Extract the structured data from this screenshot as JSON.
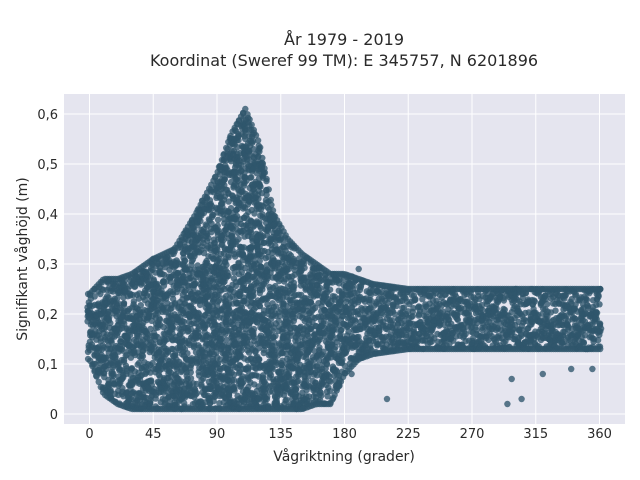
{
  "chart_data": {
    "type": "scatter",
    "title_line1": "År 1979 - 2019",
    "title_line2": "Koordinat (Sweref 99 TM): E 345757, N 6201896",
    "xlabel": "Vågriktning (grader)",
    "ylabel": "Signifikant våghöjd (m)",
    "xlim": [
      -18,
      378
    ],
    "ylim": [
      -0.02,
      0.64
    ],
    "xticks": [
      0,
      45,
      90,
      135,
      180,
      225,
      270,
      315,
      360
    ],
    "xtick_labels": [
      "0",
      "45",
      "90",
      "135",
      "180",
      "225",
      "270",
      "315",
      "360"
    ],
    "yticks": [
      0,
      0.1,
      0.2,
      0.3,
      0.4,
      0.5,
      0.6
    ],
    "ytick_labels": [
      "0",
      "0,1",
      "0,2",
      "0,3",
      "0,4",
      "0,5",
      "0,6"
    ],
    "grid": true,
    "legend": "none",
    "colors": {
      "background": "#e5e5ef",
      "points": "#30566b",
      "grid": "#ffffff"
    },
    "point_envelope": {
      "description_x": [
        0,
        10,
        20,
        30,
        45,
        60,
        75,
        90,
        100,
        110,
        120,
        130,
        140,
        150,
        160,
        170,
        180,
        190,
        200,
        225,
        270,
        315,
        360
      ],
      "y_max": [
        0.24,
        0.27,
        0.27,
        0.28,
        0.31,
        0.33,
        0.4,
        0.48,
        0.56,
        0.61,
        0.54,
        0.4,
        0.35,
        0.32,
        0.3,
        0.28,
        0.28,
        0.27,
        0.26,
        0.25,
        0.25,
        0.25,
        0.25
      ],
      "y_min": [
        0.11,
        0.04,
        0.02,
        0.01,
        0.01,
        0.01,
        0.01,
        0.01,
        0.01,
        0.01,
        0.01,
        0.01,
        0.01,
        0.01,
        0.02,
        0.02,
        0.08,
        0.11,
        0.12,
        0.13,
        0.13,
        0.13,
        0.13
      ]
    },
    "outliers": [
      {
        "x": 295,
        "y": 0.02
      },
      {
        "x": 298,
        "y": 0.07
      },
      {
        "x": 305,
        "y": 0.03
      },
      {
        "x": 210,
        "y": 0.03
      },
      {
        "x": 185,
        "y": 0.08
      },
      {
        "x": 320,
        "y": 0.08
      },
      {
        "x": 340,
        "y": 0.09
      },
      {
        "x": 355,
        "y": 0.09
      },
      {
        "x": 190,
        "y": 0.29
      }
    ]
  }
}
